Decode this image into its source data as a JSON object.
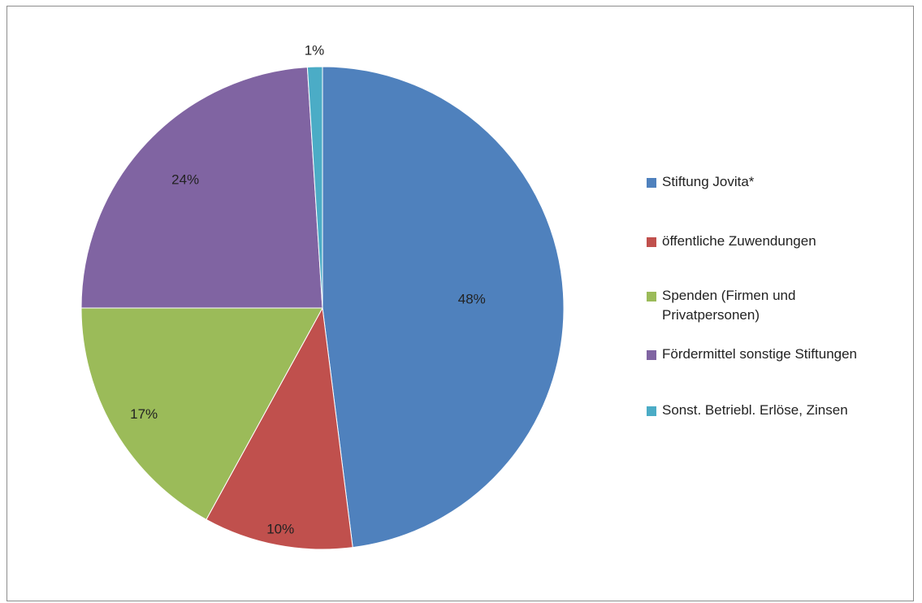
{
  "chart_data": {
    "type": "pie",
    "slices": [
      {
        "label": "Stiftung Jovita*",
        "value": 48,
        "value_label": "48%",
        "color": "#4F81BD"
      },
      {
        "label": "öffentliche Zuwendungen",
        "value": 10,
        "value_label": "10%",
        "color": "#C0504D"
      },
      {
        "label": "Spenden (Firmen und Privatpersonen)",
        "value": 17,
        "value_label": "17%",
        "color": "#9BBB59"
      },
      {
        "label": "Fördermittel sonstige Stiftungen",
        "value": 24,
        "value_label": "24%",
        "color": "#8064A2"
      },
      {
        "label": "Sonst. Betriebl. Erlöse, Zinsen",
        "value": 1,
        "value_label": "1%",
        "color": "#4BACC6"
      }
    ],
    "legend_position": "right",
    "start_angle": "12 o'clock",
    "direction": "clockwise"
  }
}
